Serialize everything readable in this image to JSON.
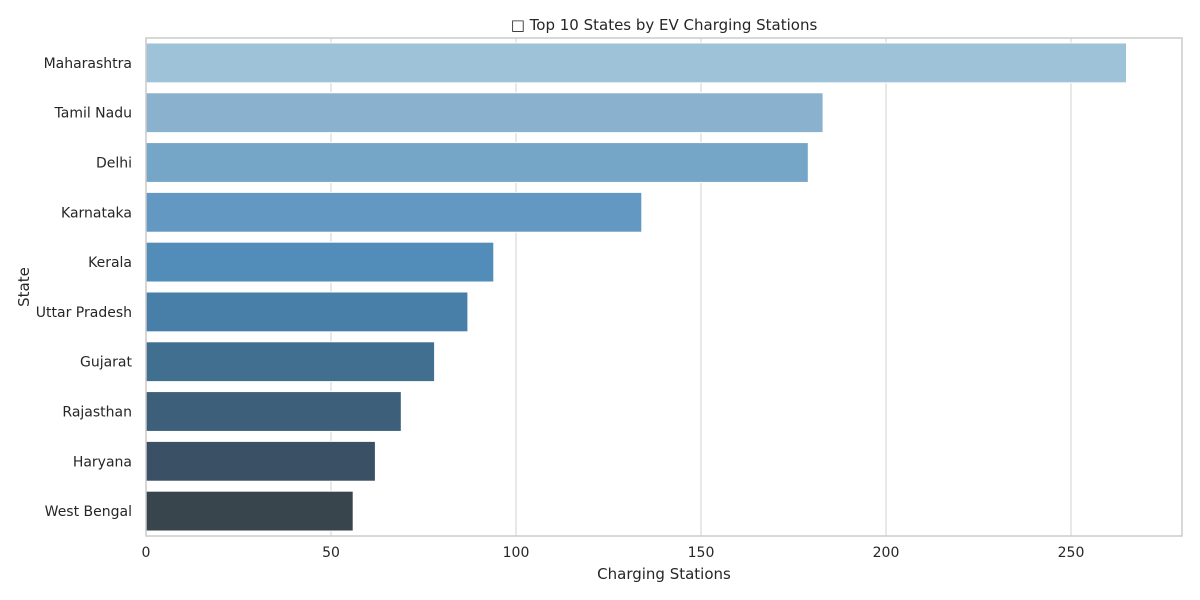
{
  "chart_data": {
    "type": "bar",
    "orientation": "horizontal",
    "title": "□ Top 10 States by EV Charging Stations",
    "xlabel": "Charging Stations",
    "ylabel": "State",
    "categories": [
      "Maharashtra",
      "Tamil Nadu",
      "Delhi",
      "Karnataka",
      "Kerala",
      "Uttar Pradesh",
      "Gujarat",
      "Rajasthan",
      "Haryana",
      "West Bengal"
    ],
    "values": [
      265,
      183,
      179,
      134,
      94,
      87,
      78,
      69,
      62,
      56
    ],
    "colors": [
      "#9ec3d9",
      "#8ab2cf",
      "#75a6c8",
      "#6298c2",
      "#528cb9",
      "#477fa9",
      "#406f90",
      "#3d5f7a",
      "#3a5064",
      "#39454d"
    ],
    "xlim": [
      0,
      280
    ],
    "xticks": [
      0,
      50,
      100,
      150,
      200,
      250
    ],
    "grid": true,
    "legend": "none"
  }
}
